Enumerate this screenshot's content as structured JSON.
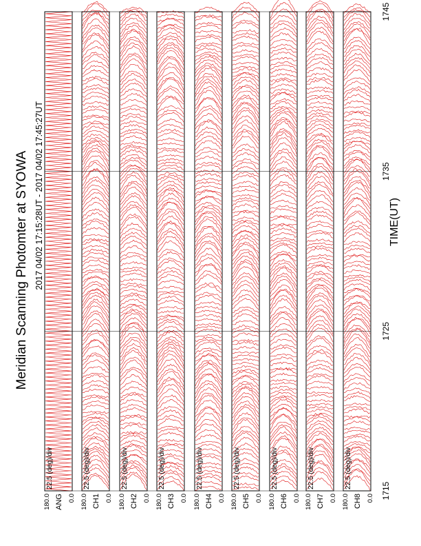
{
  "title": "Meridian Scanning Photomter at SYOWA",
  "time_range": "2017 04/02 17:15:28UT - 2017 04/02 17:45:27UT",
  "xlabel": "TIME(UT)",
  "colors": {
    "trace": "#dd0000",
    "frame": "#000000"
  },
  "chart_data": {
    "type": "line",
    "title": "Meridian Scanning Photomter at SYOWA",
    "xlabel": "TIME(UT)",
    "x_ticks": [
      "1715",
      "1725",
      "1735",
      "1745"
    ],
    "xlim": [
      1715,
      1745
    ],
    "panels": [
      {
        "name": "ANG",
        "channel_index": "",
        "scale": "22.5 (deg)/div",
        "y_ticks": [
          "180.0",
          "0.0"
        ]
      },
      {
        "name": "CH",
        "channel_index": "1",
        "scale": "22.5 (deg)/div",
        "y_ticks": [
          "180.0",
          "0.0"
        ]
      },
      {
        "name": "CH",
        "channel_index": "2",
        "scale": "22.5 (deg)/div",
        "y_ticks": [
          "180.0",
          "0.0"
        ]
      },
      {
        "name": "CH",
        "channel_index": "3",
        "scale": "22.5 (deg)/div",
        "y_ticks": [
          "180.0",
          "0.0"
        ]
      },
      {
        "name": "CH",
        "channel_index": "4",
        "scale": "22.5 (deg)/div",
        "y_ticks": [
          "180.0",
          "0.0"
        ]
      },
      {
        "name": "CH",
        "channel_index": "5",
        "scale": "22.5 (deg)/div",
        "y_ticks": [
          "180.0",
          "0.0"
        ]
      },
      {
        "name": "CH",
        "channel_index": "6",
        "scale": "22.5 (deg)/div",
        "y_ticks": [
          "180.0",
          "0.0"
        ]
      },
      {
        "name": "CH",
        "channel_index": "7",
        "scale": "22.5 (deg)/div",
        "y_ticks": [
          "180.0",
          "0.0"
        ]
      },
      {
        "name": "CH",
        "channel_index": "8",
        "scale": "22.5 (deg)/div",
        "y_ticks": [
          "180.0",
          "0.0"
        ]
      }
    ]
  }
}
